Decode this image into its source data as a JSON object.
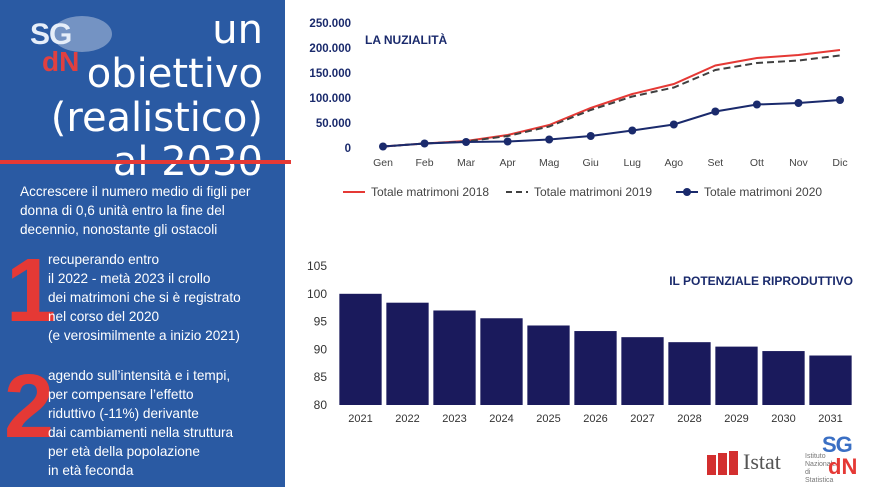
{
  "left_panel": {
    "logo": {
      "sg": "SG",
      "dn": "dN"
    },
    "title_lines": [
      "un",
      "obiettivo",
      "(realistico)",
      "al 2030"
    ],
    "intro": "Accrescere il numero medio di figli per donna di 0,6 unità entro la fine del decennio, nonostante gli ostacoli",
    "point1": {
      "number": "1",
      "lines": [
        "recuperando entro",
        "il 2022 - metà 2023  il crollo",
        "dei matrimoni che si è registrato",
        "nel corso del 2020",
        "(e verosimilmente a inizio 2021)"
      ]
    },
    "point2": {
      "number": "2",
      "lines": [
        "agendo sull’intensità e i tempi,",
        "per compensare l’effetto",
        "riduttivo (-11%) derivante",
        "dai  cambiamenti nella struttura",
        "per età della popolazione",
        "in età feconda"
      ]
    }
  },
  "footer": {
    "istat": "Istat",
    "istat_sub": "Istituto Nazionale di Statistica",
    "sgdn_sg": "SG",
    "sgdn_dn": "dN"
  },
  "chart_data": [
    {
      "type": "line",
      "title": "LA NUZIALITÀ",
      "categories": [
        "Gen",
        "Feb",
        "Mar",
        "Apr",
        "Mag",
        "Giu",
        "Lug",
        "Ago",
        "Set",
        "Ott",
        "Nov",
        "Dic"
      ],
      "ylim": [
        0,
        250000
      ],
      "yticks": [
        0,
        50000,
        100000,
        150000,
        200000,
        250000
      ],
      "ytick_labels": [
        "0",
        "50.000",
        "100.000",
        "150.000",
        "200.000",
        "250.000"
      ],
      "legend_position": "bottom",
      "series": [
        {
          "name": "Totale matrimoni 2018",
          "style": "solid",
          "color": "#e53935",
          "values": [
            3000,
            9000,
            14000,
            26000,
            46000,
            80000,
            108000,
            128000,
            165000,
            180000,
            186000,
            196000
          ]
        },
        {
          "name": "Totale matrimoni 2019",
          "style": "dashed",
          "color": "#404040",
          "values": [
            3000,
            9000,
            13000,
            24000,
            43000,
            76000,
            103000,
            121000,
            156000,
            170000,
            175000,
            185000
          ]
        },
        {
          "name": "Totale matrimoni 2020",
          "style": "markers",
          "color": "#1a2a6c",
          "values": [
            3000,
            9000,
            12000,
            13000,
            17000,
            24000,
            35000,
            47000,
            73000,
            87000,
            90000,
            96000
          ]
        }
      ]
    },
    {
      "type": "bar",
      "title": "IL POTENZIALE RIPRODUTTIVO",
      "categories": [
        "2021",
        "2022",
        "2023",
        "2024",
        "2025",
        "2026",
        "2027",
        "2028",
        "2029",
        "2030",
        "2031"
      ],
      "values": [
        100,
        98.4,
        97,
        95.6,
        94.3,
        93.3,
        92.2,
        91.3,
        90.5,
        89.7,
        88.9
      ],
      "ylim": [
        80,
        105
      ],
      "yticks": [
        80,
        85,
        90,
        95,
        100,
        105
      ],
      "color": "#1a1a5c"
    }
  ]
}
